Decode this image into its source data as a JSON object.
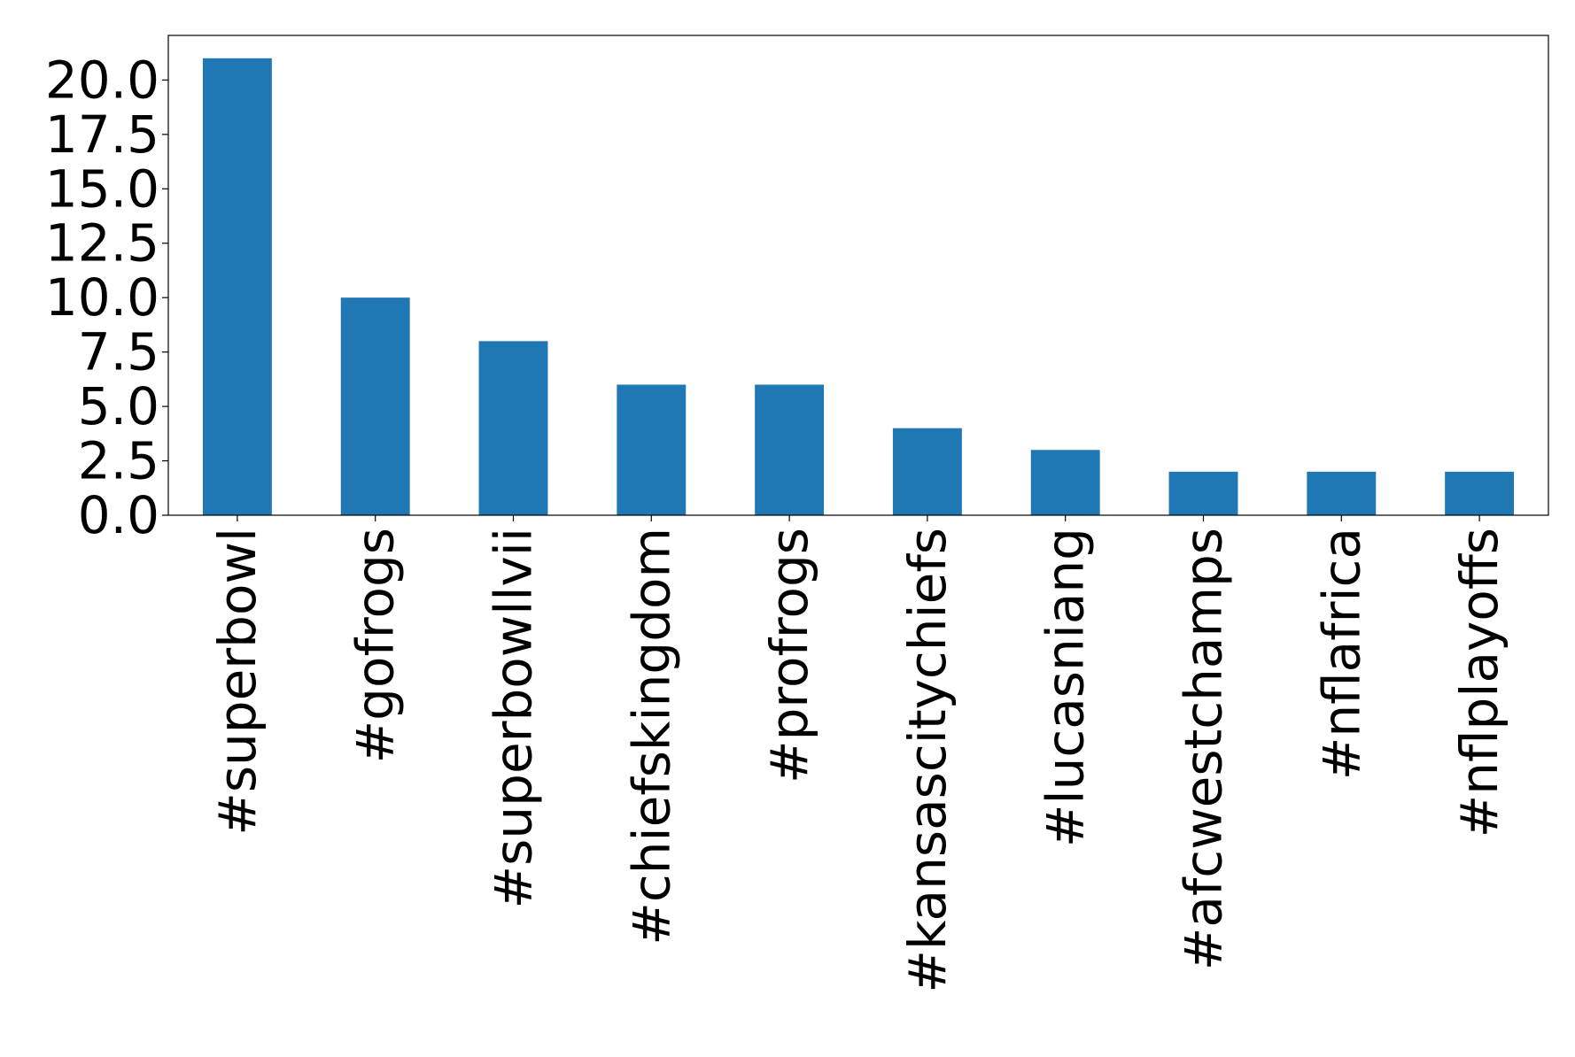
{
  "chart_data": {
    "type": "bar",
    "title": "",
    "xlabel": "",
    "ylabel": "",
    "categories": [
      "#superbowl",
      "#gofrogs",
      "#superbowllvii",
      "#chiefskingdom",
      "#profrogs",
      "#kansascitychiefs",
      "#lucasniang",
      "#afcwestchamps",
      "#nflafrica",
      "#nflplayoffs"
    ],
    "values": [
      21,
      10,
      8,
      6,
      6,
      4,
      3,
      2,
      2,
      2
    ],
    "ylim": [
      0,
      22.05
    ],
    "yticks": [
      "0.0",
      "2.5",
      "5.0",
      "7.5",
      "10.0",
      "12.5",
      "15.0",
      "17.5",
      "20.0"
    ],
    "grid": false,
    "legend": "none",
    "bar_color": "#1f77b4"
  }
}
